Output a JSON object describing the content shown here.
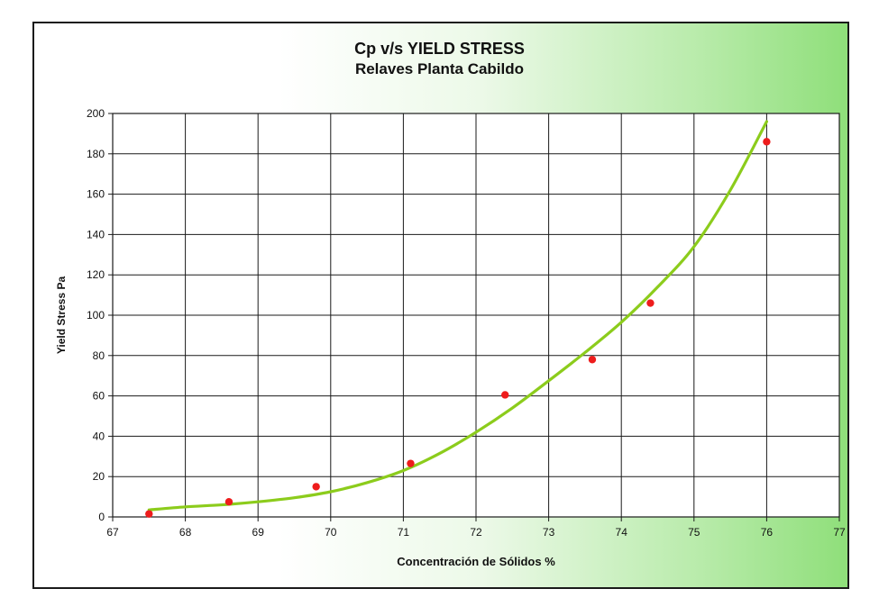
{
  "chart_data": {
    "type": "scatter",
    "title": "Cp v/s YIELD STRESS",
    "subtitle": "Relaves Planta Cabildo",
    "xlabel": "Concentración de Sólidos %",
    "ylabel": "Yield Stress Pa",
    "xlim": [
      67,
      77
    ],
    "ylim": [
      0,
      200
    ],
    "xticks": [
      "67",
      "68",
      "69",
      "70",
      "71",
      "72",
      "73",
      "74",
      "75",
      "76",
      "77"
    ],
    "yticks": [
      "0",
      "20",
      "40",
      "60",
      "80",
      "100",
      "120",
      "140",
      "160",
      "180",
      "200"
    ],
    "grid": true,
    "series": [
      {
        "kind": "points",
        "x": [
          67.5,
          68.6,
          69.8,
          71.1,
          72.4,
          73.6,
          74.4,
          76.0
        ],
        "y": [
          1.5,
          7.5,
          15,
          26.5,
          60.5,
          78,
          106,
          186
        ]
      },
      {
        "kind": "trendline",
        "x": [
          67.5,
          68.0,
          68.5,
          69.0,
          69.5,
          70.0,
          70.5,
          71.0,
          71.5,
          72.0,
          72.5,
          73.0,
          73.5,
          74.0,
          74.5,
          75.0,
          75.5,
          76.0
        ],
        "y": [
          3.5,
          5.0,
          6.0,
          7.5,
          9.5,
          12.5,
          17,
          23,
          31.5,
          42,
          54,
          67.5,
          81.5,
          96.5,
          114,
          134,
          162,
          196
        ]
      }
    ],
    "colors": {
      "points": "#ee1c1c",
      "trendline": "#8ccc1c",
      "grid": "#1a1a1a"
    }
  }
}
